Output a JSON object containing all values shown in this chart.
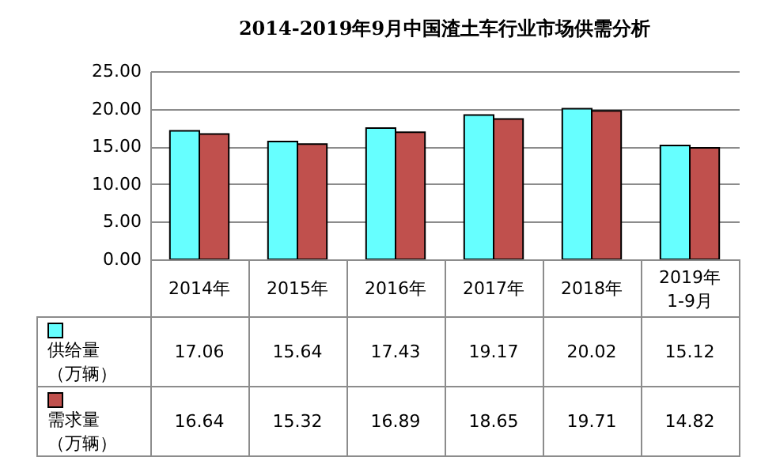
{
  "chart_data": {
    "type": "bar",
    "title": "2014-2019年9月中国渣土车行业市场供需分析",
    "categories": [
      "2014年",
      "2015年",
      "2016年",
      "2017年",
      "2018年",
      "2019年\n1-9月"
    ],
    "series": [
      {
        "name": "供给量（万辆）",
        "color": "#66ffff",
        "values": [
          17.06,
          15.64,
          17.43,
          19.17,
          20.02,
          15.12
        ]
      },
      {
        "name": "需求量（万辆）",
        "color": "#c0504d",
        "values": [
          16.64,
          15.32,
          16.89,
          18.65,
          19.71,
          14.82
        ]
      }
    ],
    "ylim": [
      0,
      25
    ],
    "yticks": [
      {
        "value": 0,
        "label": "0.00"
      },
      {
        "value": 5,
        "label": "5.00"
      },
      {
        "value": 10,
        "label": "10.00"
      },
      {
        "value": 15,
        "label": "15.00"
      },
      {
        "value": 20,
        "label": "20.00"
      },
      {
        "value": 25,
        "label": "25.00"
      }
    ],
    "grid": "y",
    "legend": "bottom left",
    "data_labels": true
  }
}
